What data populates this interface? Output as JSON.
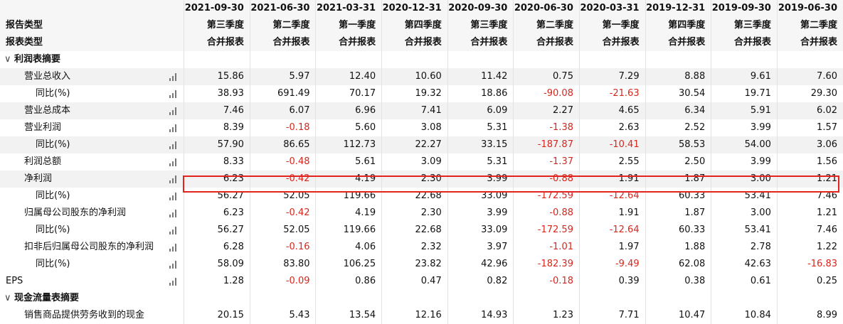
{
  "header": {
    "dates": [
      "2021-09-30",
      "2021-06-30",
      "2021-03-31",
      "2020-12-31",
      "2020-09-30",
      "2020-06-30",
      "2020-03-31",
      "2019-12-31",
      "2019-09-30",
      "2019-06-30"
    ],
    "report_period_label": "报告类型",
    "report_periods": [
      "第三季度",
      "第二季度",
      "第一季度",
      "第四季度",
      "第三季度",
      "第二季度",
      "第一季度",
      "第四季度",
      "第三季度",
      "第二季度"
    ],
    "statement_type_label": "报表类型",
    "statement_types": [
      "合并报表",
      "合并报表",
      "合并报表",
      "合并报表",
      "合并报表",
      "合并报表",
      "合并报表",
      "合并报表",
      "合并报表",
      "合并报表"
    ]
  },
  "sections": {
    "income": {
      "label": "利润表摘要"
    },
    "cashflow": {
      "label": "现金流量表摘要"
    }
  },
  "rows": [
    {
      "label": "营业总收入",
      "values": [
        "15.86",
        "5.97",
        "12.40",
        "10.60",
        "11.42",
        "0.75",
        "7.29",
        "8.88",
        "9.61",
        "7.60"
      ]
    },
    {
      "label": "同比(%)",
      "values": [
        "38.93",
        "691.49",
        "70.17",
        "19.32",
        "18.86",
        "-90.08",
        "-21.63",
        "30.54",
        "19.71",
        "29.30"
      ]
    },
    {
      "label": "营业总成本",
      "values": [
        "7.46",
        "6.07",
        "6.96",
        "7.41",
        "6.09",
        "2.27",
        "4.65",
        "6.34",
        "5.91",
        "6.02"
      ]
    },
    {
      "label": "营业利润",
      "values": [
        "8.39",
        "-0.18",
        "5.60",
        "3.08",
        "5.31",
        "-1.38",
        "2.63",
        "2.52",
        "3.99",
        "1.57"
      ]
    },
    {
      "label": "同比(%)",
      "values": [
        "57.90",
        "86.65",
        "112.73",
        "22.27",
        "33.15",
        "-187.87",
        "-10.41",
        "58.53",
        "54.00",
        "3.06"
      ]
    },
    {
      "label": "利润总额",
      "values": [
        "8.33",
        "-0.48",
        "5.61",
        "3.09",
        "5.31",
        "-1.37",
        "2.55",
        "2.50",
        "3.99",
        "1.56"
      ]
    },
    {
      "label": "净利润",
      "values": [
        "6.23",
        "-0.42",
        "4.19",
        "2.30",
        "3.99",
        "-0.88",
        "1.91",
        "1.87",
        "3.00",
        "1.21"
      ]
    },
    {
      "label": "同比(%)",
      "values": [
        "56.27",
        "52.05",
        "119.66",
        "22.68",
        "33.09",
        "-172.59",
        "-12.64",
        "60.33",
        "53.41",
        "7.46"
      ]
    },
    {
      "label": "归属母公司股东的净利润",
      "values": [
        "6.23",
        "-0.42",
        "4.19",
        "2.30",
        "3.99",
        "-0.88",
        "1.91",
        "1.87",
        "3.00",
        "1.21"
      ]
    },
    {
      "label": "同比(%)",
      "values": [
        "56.27",
        "52.05",
        "119.66",
        "22.68",
        "33.09",
        "-172.59",
        "-12.64",
        "60.33",
        "53.41",
        "7.46"
      ]
    },
    {
      "label": "扣非后归属母公司股东的净利润",
      "values": [
        "6.28",
        "-0.16",
        "4.06",
        "2.32",
        "3.97",
        "-1.01",
        "1.97",
        "1.88",
        "2.78",
        "1.22"
      ]
    },
    {
      "label": "同比(%)",
      "values": [
        "58.09",
        "83.80",
        "106.25",
        "23.82",
        "42.96",
        "-182.39",
        "-9.49",
        "62.08",
        "42.63",
        "-16.83"
      ]
    },
    {
      "label": "EPS",
      "values": [
        "1.28",
        "-0.09",
        "0.86",
        "0.47",
        "0.82",
        "-0.18",
        "0.39",
        "0.38",
        "0.61",
        "0.25"
      ]
    }
  ],
  "partial_row": {
    "label": "销售商品提供劳务收到的现金",
    "values": [
      "20.15",
      "5.43",
      "13.54",
      "12.16",
      "14.93",
      "1.23",
      "7.71",
      "10.47",
      "10.84",
      "8.99"
    ]
  },
  "colors": {
    "negative": "#d9261c",
    "highlight_border": "#e3231e",
    "header_bg": "#f6f6f6",
    "shaded_row": "#f2f2f2"
  }
}
